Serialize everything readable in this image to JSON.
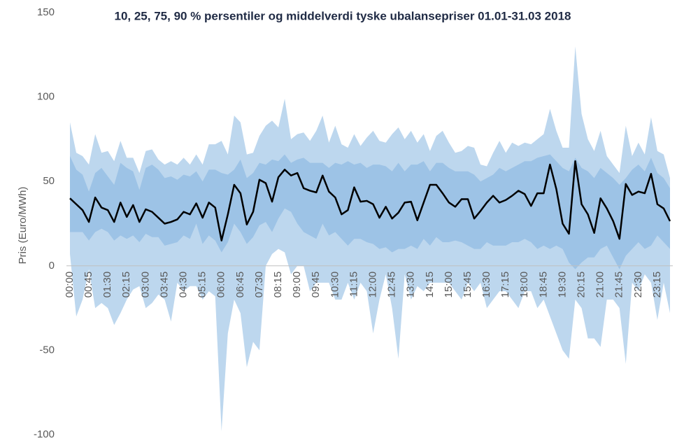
{
  "chart_data": {
    "type": "band-line",
    "title": "10, 25, 75, 90 % persentiler og middelverdi tyske ubalansepriser 01.01-31.03 2018",
    "y_label": "Pris (Euro/MWh)",
    "categories": [
      "00:00",
      null,
      null,
      "00:45",
      null,
      null,
      "01:30",
      null,
      null,
      "02:15",
      null,
      null,
      "03:00",
      null,
      null,
      "03:45",
      null,
      null,
      "04:30",
      null,
      null,
      "05:15",
      null,
      null,
      "06:00",
      null,
      null,
      "06:45",
      null,
      null,
      "07:30",
      null,
      null,
      "08:15",
      null,
      null,
      "09:00",
      null,
      null,
      "09:45",
      null,
      null,
      "10:30",
      null,
      null,
      "11:15",
      null,
      null,
      "12:00",
      null,
      null,
      "12:45",
      null,
      null,
      "13:30",
      null,
      null,
      "14:15",
      null,
      null,
      "15:00",
      null,
      null,
      "15:45",
      null,
      null,
      "16:30",
      null,
      null,
      "17:15",
      null,
      null,
      "18:00",
      null,
      null,
      "18:45",
      null,
      null,
      "19:30",
      null,
      null,
      "20:15",
      null,
      null,
      "21:00",
      null,
      null,
      "21:45",
      null,
      null,
      "22:30",
      null,
      null,
      "23:15",
      null,
      null
    ],
    "bands": [
      {
        "color": "#bdd7ee",
        "lower": [
          7,
          -30,
          -20,
          -2,
          -25,
          -22,
          -25,
          -35,
          -28,
          -20,
          -14,
          -12,
          -25,
          -22,
          -17,
          -20,
          -33,
          -10,
          -15,
          -12,
          -12,
          -20,
          -15,
          -18,
          -98,
          -40,
          -20,
          -28,
          -60,
          -45,
          -50,
          0,
          7,
          10,
          8,
          -5,
          0,
          0,
          -15,
          -10,
          -10,
          -10,
          -20,
          -20,
          -10,
          -20,
          -10,
          -15,
          -40,
          -20,
          -5,
          -25,
          -55,
          -5,
          -20,
          -12,
          -15,
          -10,
          -10,
          -10,
          -10,
          -15,
          -20,
          -10,
          -15,
          -10,
          -25,
          -20,
          -15,
          -15,
          -20,
          -25,
          -15,
          -15,
          -25,
          -20,
          -30,
          -40,
          -50,
          -55,
          -20,
          -25,
          -43,
          -43,
          -48,
          -20,
          -20,
          -25,
          -58,
          -10,
          -15,
          -5,
          -10,
          -32,
          -10,
          -28
        ],
        "upper": [
          85,
          67,
          65,
          60,
          78,
          67,
          68,
          62,
          74,
          64,
          64,
          55,
          68,
          69,
          63,
          60,
          62,
          60,
          64,
          60,
          66,
          60,
          72,
          72,
          74,
          66,
          89,
          85,
          66,
          67,
          77,
          83,
          86,
          82,
          99,
          75,
          78,
          79,
          74,
          80,
          89,
          73,
          83,
          72,
          70,
          78,
          71,
          76,
          80,
          74,
          73,
          78,
          82,
          75,
          80,
          73,
          78,
          68,
          77,
          80,
          73,
          67,
          68,
          71,
          70,
          60,
          59,
          67,
          74,
          67,
          73,
          71,
          73,
          72,
          75,
          78,
          93,
          80,
          70,
          70,
          130,
          90,
          75,
          68,
          80,
          65,
          60,
          55,
          83,
          65,
          73,
          66,
          88,
          68,
          66,
          52
        ]
      },
      {
        "color": "#9dc3e6",
        "lower": [
          20,
          20,
          20,
          15,
          20,
          22,
          20,
          15,
          18,
          16,
          18,
          14,
          19,
          17,
          17,
          12,
          13,
          14,
          18,
          16,
          25,
          13,
          18,
          15,
          8,
          14,
          25,
          20,
          13,
          17,
          24,
          26,
          20,
          28,
          34,
          32,
          25,
          20,
          18,
          16,
          25,
          18,
          20,
          16,
          12,
          16,
          16,
          14,
          13,
          10,
          11,
          8,
          10,
          10,
          12,
          10,
          16,
          12,
          17,
          14,
          14,
          15,
          14,
          12,
          10,
          10,
          14,
          12,
          12,
          12,
          14,
          14,
          16,
          14,
          10,
          12,
          10,
          12,
          10,
          2,
          -2,
          2,
          5,
          5,
          10,
          12,
          5,
          -2,
          6,
          10,
          14,
          10,
          12,
          18,
          14,
          10
        ],
        "upper": [
          65,
          57,
          54,
          44,
          55,
          58,
          53,
          48,
          61,
          58,
          56,
          45,
          58,
          60,
          57,
          52,
          53,
          51,
          54,
          53,
          56,
          50,
          57,
          57,
          55,
          54,
          57,
          63,
          52,
          55,
          61,
          60,
          63,
          62,
          66,
          61,
          63,
          64,
          61,
          61,
          61,
          58,
          61,
          60,
          62,
          60,
          61,
          58,
          60,
          60,
          59,
          56,
          61,
          56,
          60,
          60,
          62,
          56,
          61,
          61,
          58,
          56,
          56,
          56,
          54,
          50,
          52,
          54,
          58,
          56,
          58,
          60,
          62,
          62,
          64,
          65,
          66,
          62,
          58,
          56,
          64,
          58,
          56,
          52,
          58,
          55,
          52,
          48,
          52,
          57,
          60,
          56,
          64,
          55,
          52,
          46
        ]
      }
    ],
    "series": [
      {
        "color": "#000000",
        "values": [
          40,
          36.5,
          33,
          26,
          40.5,
          34.5,
          33,
          26,
          37.5,
          29,
          36,
          26,
          33.5,
          32,
          28.5,
          25,
          26,
          27.5,
          32,
          30.5,
          37,
          28.5,
          37.5,
          34.5,
          15,
          30.5,
          48,
          43,
          24.5,
          32,
          51,
          49,
          38,
          52.5,
          57,
          53.5,
          55,
          46,
          44.5,
          43.5,
          53.5,
          44,
          40.5,
          30.5,
          33,
          46.5,
          38,
          38.5,
          36.5,
          28.5,
          35,
          28,
          31.5,
          37.5,
          38,
          27,
          37.5,
          48,
          48,
          43,
          37.5,
          35,
          39.5,
          39.5,
          28,
          32.5,
          37.5,
          41.5,
          37.5,
          39,
          41.5,
          44.5,
          42.5,
          35.5,
          43,
          43,
          60,
          45.5,
          25,
          19,
          62,
          36.5,
          30.5,
          19.5,
          40,
          34,
          26.5,
          16,
          48.5,
          42,
          44,
          43,
          54.5,
          36.5,
          34,
          26.5
        ]
      }
    ],
    "ylim": [
      -100,
      150
    ],
    "yticks": [
      -100,
      -50,
      0,
      50,
      100,
      150
    ],
    "grid": false
  }
}
